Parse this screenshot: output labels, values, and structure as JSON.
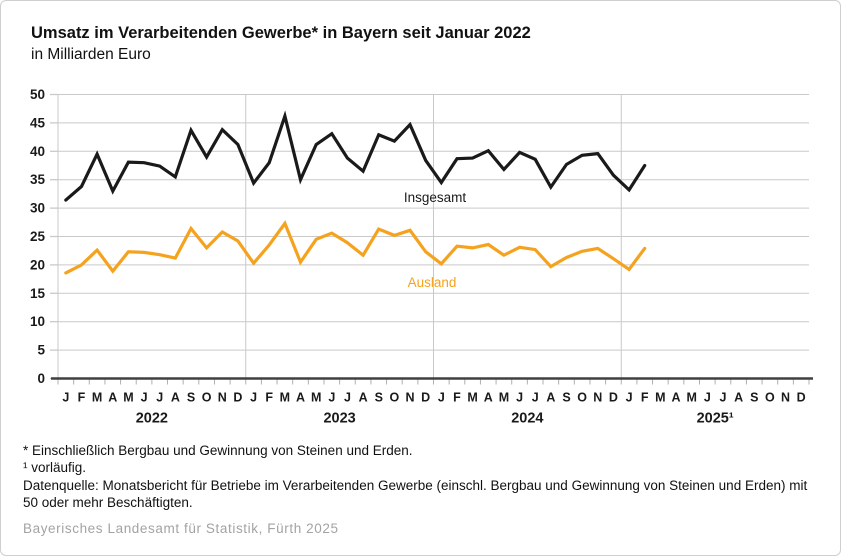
{
  "page": {
    "title": "Umsatz im Verarbeitenden Gewerbe* in Bayern seit Januar 2022",
    "subtitle": "in Milliarden Euro",
    "footnote_star": "* Einschließlich Bergbau und Gewinnung von Steinen und Erden.",
    "footnote_one": "¹ vorläufig.",
    "footnote_source_desc": "Datenquelle: Monatsbericht für Betriebe im Verarbeitenden Gewerbe (einschl. Bergbau und Gewinnung von Steinen und Erden) mit 50 oder mehr Beschäftigten.",
    "source": "Bayerisches Landesamt für Statistik, Fürth 2025"
  },
  "colors": {
    "insgesamt_line": "#1a1a1a",
    "ausland_line": "#f5a31e",
    "gridline": "#c9c9c9",
    "axis": "#404040",
    "tick": "#b0b0b0",
    "label": "#1a1a1a",
    "source_text": "#a3a3a3"
  },
  "chart_data": {
    "type": "line",
    "title": "Umsatz im Verarbeitenden Gewerbe in Bayern seit Januar 2022",
    "ylabel": "Milliarden Euro",
    "ylim": [
      0,
      50
    ],
    "ytick_step": 5,
    "grid": "horizontal gridlines + vertical year separators",
    "legend": "inline series labels",
    "month_letters": [
      "J",
      "F",
      "M",
      "A",
      "M",
      "J",
      "J",
      "A",
      "S",
      "O",
      "N",
      "D"
    ],
    "years": [
      "2022",
      "2023",
      "2024",
      "2025¹"
    ],
    "x_note": "monthly values Jan 2022 - Feb 2025",
    "series": [
      {
        "name": "Insgesamt",
        "color": "#1a1a1a",
        "values": [
          31.4,
          33.8,
          39.5,
          33.0,
          38.1,
          38.0,
          37.4,
          35.5,
          43.7,
          39.0,
          43.8,
          41.2,
          34.4,
          38.0,
          46.2,
          35.0,
          41.2,
          43.1,
          38.8,
          36.5,
          42.9,
          41.8,
          44.7,
          38.4,
          34.5,
          38.7,
          38.8,
          40.1,
          36.8,
          39.8,
          38.6,
          33.7,
          37.7,
          39.3,
          39.6,
          35.8,
          33.2,
          37.5
        ]
      },
      {
        "name": "Ausland",
        "color": "#f5a31e",
        "values": [
          18.6,
          20.0,
          22.6,
          18.9,
          22.3,
          22.2,
          21.8,
          21.2,
          26.4,
          23.0,
          25.8,
          24.2,
          20.3,
          23.5,
          27.3,
          20.5,
          24.5,
          25.6,
          23.9,
          21.7,
          26.3,
          25.2,
          26.1,
          22.3,
          20.2,
          23.3,
          23.0,
          23.6,
          21.7,
          23.1,
          22.7,
          19.7,
          21.3,
          22.4,
          22.9,
          21.1,
          19.2,
          22.9
        ]
      }
    ]
  }
}
